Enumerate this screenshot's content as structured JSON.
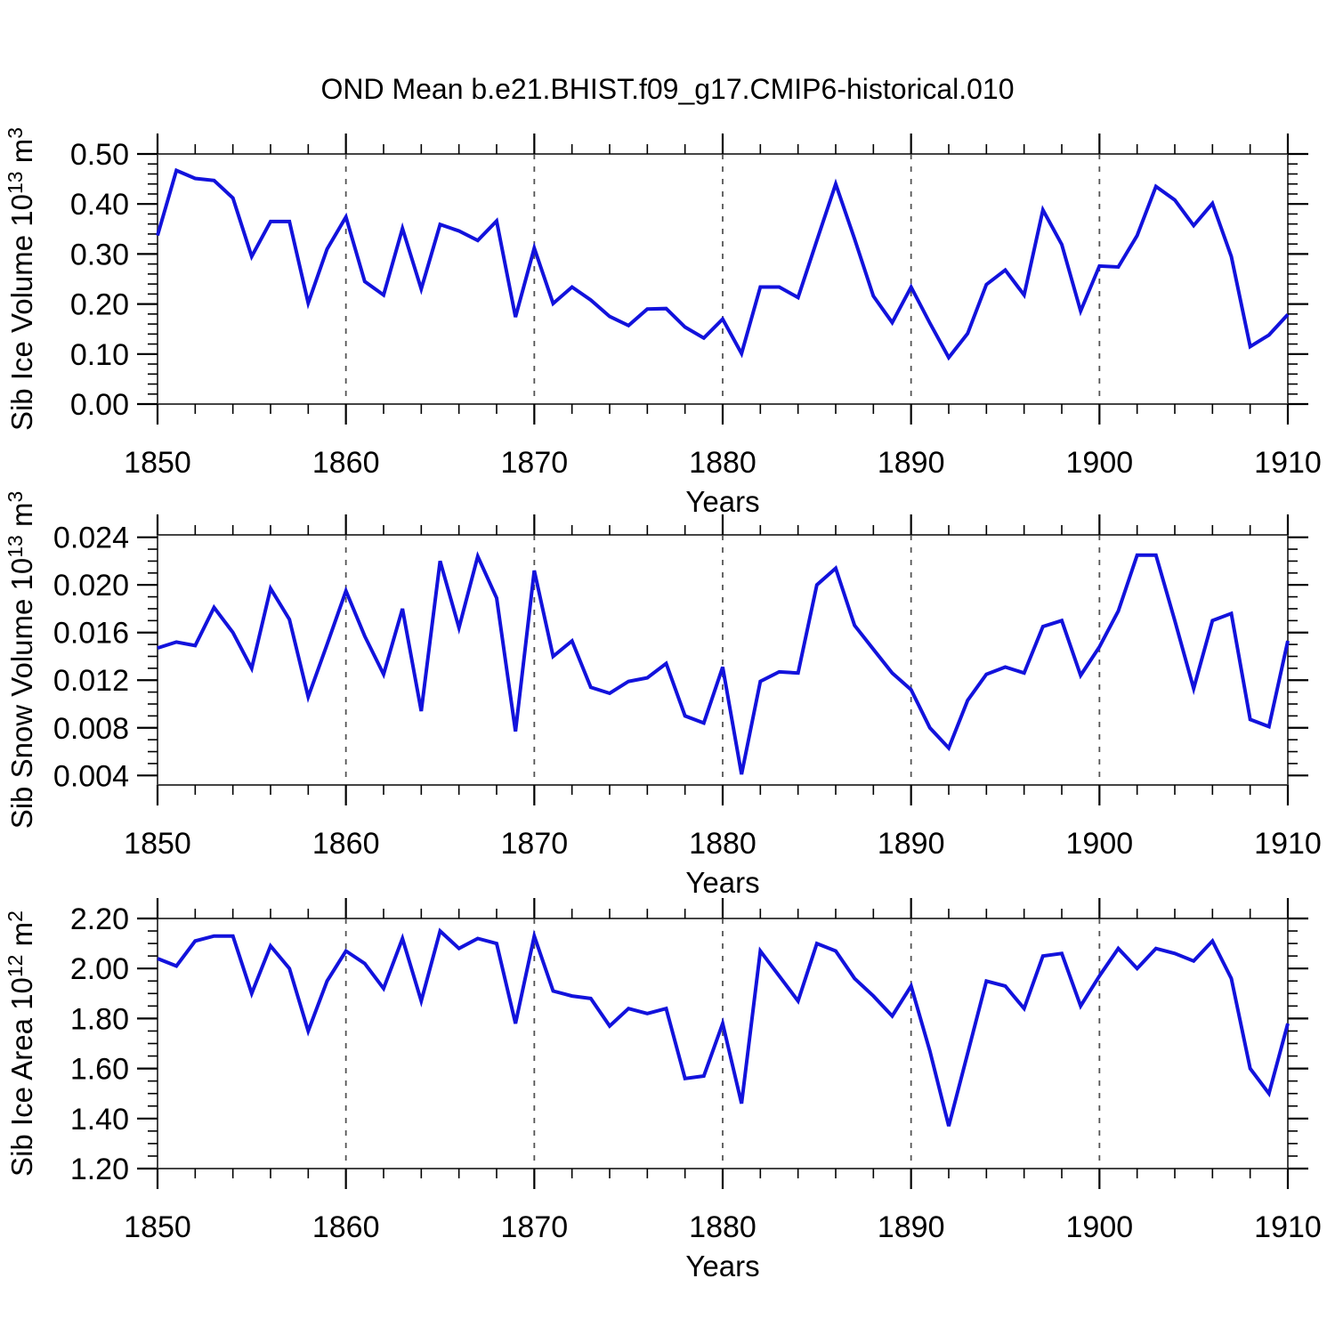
{
  "title": "OND Mean b.e21.BHIST.f09_g17.CMIP6-historical.010",
  "colors": {
    "line": "#1212dc",
    "grid": "#555555",
    "axis": "#444444",
    "tick": "#000000",
    "text": "#000000",
    "background": "#ffffff"
  },
  "years": [
    1850,
    1851,
    1852,
    1853,
    1854,
    1855,
    1856,
    1857,
    1858,
    1859,
    1860,
    1861,
    1862,
    1863,
    1864,
    1865,
    1866,
    1867,
    1868,
    1869,
    1870,
    1871,
    1872,
    1873,
    1874,
    1875,
    1876,
    1877,
    1878,
    1879,
    1880,
    1881,
    1882,
    1883,
    1884,
    1885,
    1886,
    1887,
    1888,
    1889,
    1890,
    1891,
    1892,
    1893,
    1894,
    1895,
    1896,
    1897,
    1898,
    1899,
    1900,
    1901,
    1902,
    1903,
    1904,
    1905,
    1906,
    1907,
    1908,
    1909,
    1910
  ],
  "chart_data": [
    {
      "type": "line",
      "title": "OND Mean b.e21.BHIST.f09_g17.CMIP6-historical.010",
      "series_name": "Sib Ice Volume",
      "ylabel": "Sib Ice Volume 10^{13} m^{3}",
      "xlabel": "Years",
      "values": [
        0.337,
        0.467,
        0.451,
        0.447,
        0.412,
        0.295,
        0.365,
        0.365,
        0.202,
        0.31,
        0.374,
        0.245,
        0.218,
        0.351,
        0.23,
        0.359,
        0.346,
        0.327,
        0.366,
        0.174,
        0.312,
        0.201,
        0.234,
        0.208,
        0.175,
        0.157,
        0.19,
        0.191,
        0.154,
        0.132,
        0.17,
        0.101,
        0.234,
        0.234,
        0.213,
        0.327,
        0.44,
        0.33,
        0.216,
        0.163,
        0.234,
        0.162,
        0.093,
        0.141,
        0.239,
        0.268,
        0.218,
        0.388,
        0.319,
        0.186,
        0.276,
        0.274,
        0.337,
        0.435,
        0.408,
        0.357,
        0.401,
        0.295,
        0.115,
        0.138,
        0.179
      ],
      "ylim": [
        0.0,
        0.5
      ],
      "xlim": [
        1850,
        1910
      ],
      "yticks": [
        0.0,
        0.1,
        0.2,
        0.3,
        0.4,
        0.5
      ],
      "ytick_labels": [
        "0.00",
        "0.10",
        "0.20",
        "0.30",
        "0.40",
        "0.50"
      ],
      "yminor_step": 0.02,
      "xticks": [
        1850,
        1860,
        1870,
        1880,
        1890,
        1900,
        1910
      ],
      "xtick_labels": [
        "1850",
        "1860",
        "1870",
        "1880",
        "1890",
        "1900",
        "1910"
      ],
      "xminor_step": 2,
      "grid_x_dashed": [
        1860,
        1870,
        1880,
        1890,
        1900
      ],
      "legend": "none",
      "grid": "vertical-dashed-only"
    },
    {
      "type": "line",
      "series_name": "Sib Snow Volume",
      "ylabel": "Sib Snow Volume 10^{13} m^{3}",
      "xlabel": "Years",
      "values": [
        0.0147,
        0.0152,
        0.0149,
        0.0181,
        0.016,
        0.013,
        0.0197,
        0.0171,
        0.0106,
        0.015,
        0.0195,
        0.0157,
        0.0125,
        0.018,
        0.0094,
        0.022,
        0.0164,
        0.0224,
        0.0189,
        0.0077,
        0.0212,
        0.014,
        0.0153,
        0.0114,
        0.0109,
        0.0119,
        0.0122,
        0.0134,
        0.009,
        0.0084,
        0.0131,
        0.0041,
        0.0119,
        0.0127,
        0.0126,
        0.02,
        0.0214,
        0.0166,
        0.0146,
        0.0126,
        0.0112,
        0.008,
        0.0063,
        0.0103,
        0.0125,
        0.0131,
        0.0126,
        0.0165,
        0.017,
        0.0124,
        0.0148,
        0.0178,
        0.0225,
        0.0225,
        0.017,
        0.0113,
        0.017,
        0.0176,
        0.0087,
        0.0081,
        0.0153
      ],
      "ylim": [
        0.0032,
        0.0242
      ],
      "xlim": [
        1850,
        1910
      ],
      "yticks": [
        0.004,
        0.008,
        0.012,
        0.016,
        0.02,
        0.024
      ],
      "ytick_labels": [
        "0.004",
        "0.008",
        "0.012",
        "0.016",
        "0.020",
        "0.024"
      ],
      "yminor_step": 0.001,
      "xticks": [
        1850,
        1860,
        1870,
        1880,
        1890,
        1900,
        1910
      ],
      "xtick_labels": [
        "1850",
        "1860",
        "1870",
        "1880",
        "1890",
        "1900",
        "1910"
      ],
      "xminor_step": 2,
      "grid_x_dashed": [
        1860,
        1870,
        1880,
        1890,
        1900
      ],
      "legend": "none",
      "grid": "vertical-dashed-only"
    },
    {
      "type": "line",
      "series_name": "Sib Ice Area",
      "ylabel": "Sib Ice Area 10^{12} m^{2}",
      "xlabel": "Years",
      "values": [
        2.04,
        2.01,
        2.11,
        2.13,
        2.13,
        1.9,
        2.09,
        2.0,
        1.75,
        1.95,
        2.07,
        2.02,
        1.92,
        2.12,
        1.87,
        2.15,
        2.08,
        2.12,
        2.1,
        1.78,
        2.13,
        1.91,
        1.89,
        1.88,
        1.77,
        1.84,
        1.82,
        1.84,
        1.56,
        1.57,
        1.78,
        1.46,
        2.07,
        1.97,
        1.87,
        2.1,
        2.07,
        1.96,
        1.89,
        1.81,
        1.93,
        1.67,
        1.37,
        1.66,
        1.95,
        1.93,
        1.84,
        2.05,
        2.06,
        1.85,
        1.97,
        2.08,
        2.0,
        2.08,
        2.06,
        2.03,
        2.11,
        1.96,
        1.6,
        1.5,
        1.78
      ],
      "ylim": [
        1.2,
        2.2
      ],
      "xlim": [
        1850,
        1910
      ],
      "yticks": [
        1.2,
        1.4,
        1.6,
        1.8,
        2.0,
        2.2
      ],
      "ytick_labels": [
        "1.20",
        "1.40",
        "1.60",
        "1.80",
        "2.00",
        "2.20"
      ],
      "yminor_step": 0.05,
      "xticks": [
        1850,
        1860,
        1870,
        1880,
        1890,
        1900,
        1910
      ],
      "xtick_labels": [
        "1850",
        "1860",
        "1870",
        "1880",
        "1890",
        "1900",
        "1910"
      ],
      "xminor_step": 2,
      "grid_x_dashed": [
        1860,
        1870,
        1880,
        1890,
        1900
      ],
      "legend": "none",
      "grid": "vertical-dashed-only"
    }
  ]
}
